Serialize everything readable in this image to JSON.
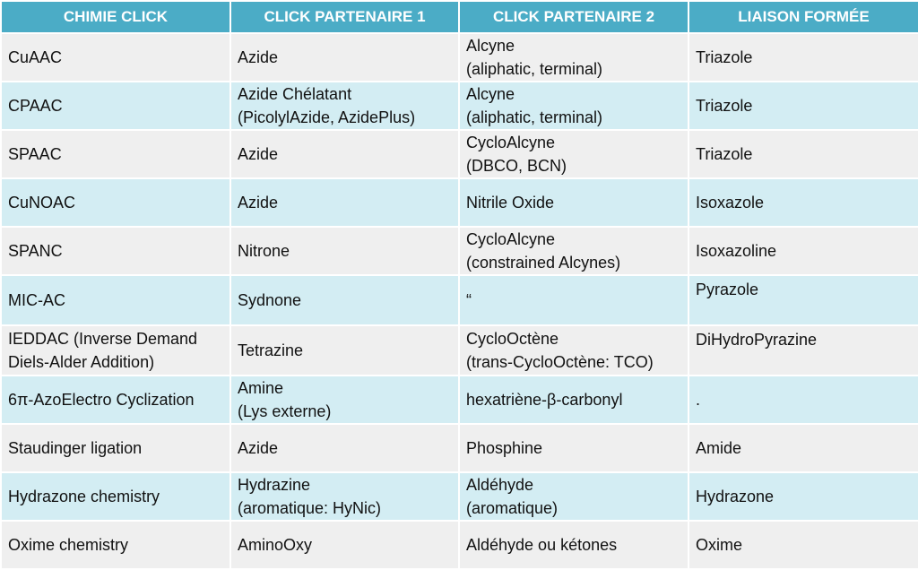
{
  "table": {
    "header": [
      "CHIMIE CLICK",
      "CLICK PARTENAIRE 1",
      "CLICK PARTENAIRE 2",
      "LIAISON FORMÉE"
    ],
    "rows": [
      [
        "CuAAC",
        "Azide",
        "Alcyne\n(aliphatic, terminal)",
        "Triazole"
      ],
      [
        "CPAAC",
        "Azide Chélatant\n(PicolylAzide, AzidePlus)",
        "Alcyne\n(aliphatic, terminal)",
        "Triazole"
      ],
      [
        "SPAAC",
        "Azide",
        "CycloAlcyne\n(DBCO, BCN)",
        "Triazole"
      ],
      [
        "CuNOAC",
        "Azide",
        "Nitrile Oxide",
        "Isoxazole"
      ],
      [
        "SPANC",
        "Nitrone",
        "CycloAlcyne\n(constrained Alcynes)",
        "Isoxazoline"
      ],
      [
        "MIC-AC",
        "Sydnone",
        "“",
        "Pyrazole"
      ],
      [
        "IEDDAC  (Inverse Demand\nDiels-Alder Addition)",
        "Tetrazine",
        "CycloOctène\n(trans-CycloOctène: TCO)",
        "DiHydroPyrazine"
      ],
      [
        "6π-AzoElectro Cyclization",
        "Amine\n(Lys externe)",
        "hexatriène-β-carbonyl",
        "."
      ],
      [
        "Staudinger ligation",
        "Azide",
        "Phosphine",
        "Amide"
      ],
      [
        "Hydrazone chemistry",
        "Hydrazine\n(aromatique: HyNic)",
        "Aldéhyde\n(aromatique)",
        "Hydrazone"
      ],
      [
        "Oxime chemistry",
        "AminoOxy",
        "Aldéhyde ou kétones",
        "Oxime"
      ]
    ]
  }
}
